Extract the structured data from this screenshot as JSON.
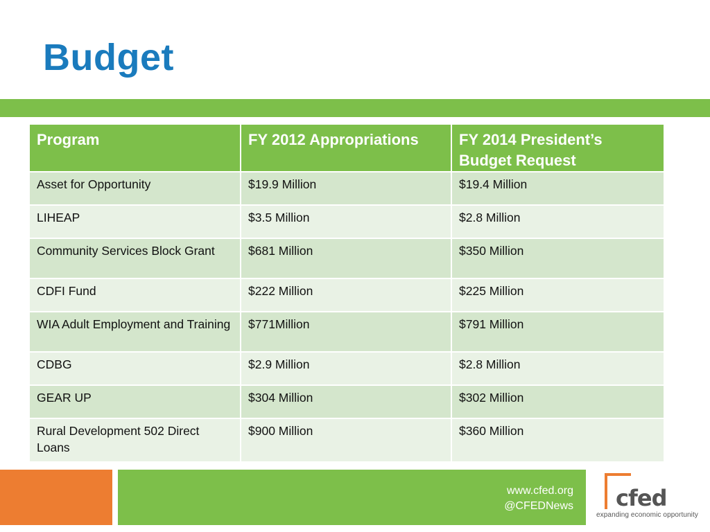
{
  "slide": {
    "title": "Budget"
  },
  "table": {
    "headers": [
      "Program",
      "FY 2012 Appropriations",
      "FY 2014 President’s Budget Request"
    ],
    "rows": [
      [
        "Asset for Opportunity",
        "$19.9 Million",
        "$19.4 Million"
      ],
      [
        "LIHEAP",
        "$3.5 Million",
        "$2.8 Million"
      ],
      [
        "Community Services Block Grant",
        "$681 Million",
        "$350 Million"
      ],
      [
        "CDFI Fund",
        "$222 Million",
        "$225 Million"
      ],
      [
        "WIA Adult Employment and Training",
        "$771Million",
        "$791 Million"
      ],
      [
        "CDBG",
        "$2.9 Million",
        "$2.8 Million"
      ],
      [
        "GEAR UP",
        "$304 Million",
        "$302 Million"
      ],
      [
        "Rural Development 502 Direct Loans",
        "$900 Million",
        "$360 Million"
      ]
    ]
  },
  "footer": {
    "website": "www.cfed.org",
    "twitter": "@CFEDNews"
  },
  "logo": {
    "wordmark": "cfed",
    "tagline": "expanding economic opportunity"
  },
  "colors": {
    "title": "#1a7bbd",
    "accent_green": "#7dbf4a",
    "accent_orange": "#ed7d31",
    "row_dark": "#d4e6cc",
    "row_light": "#e9f2e5"
  }
}
